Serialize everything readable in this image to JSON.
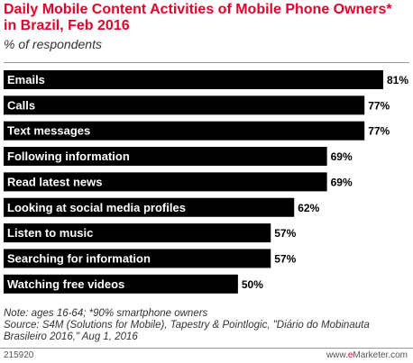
{
  "chart_data": {
    "type": "bar",
    "orientation": "horizontal",
    "title": "Daily Mobile Content Activities of Mobile Phone Owners* in Brazil, Feb 2016",
    "subtitle": "% of respondents",
    "categories": [
      "Emails",
      "Calls",
      "Text messages",
      "Following information",
      "Read latest news",
      "Looking at social media profiles",
      "Listen to music",
      "Searching for information",
      "Watching free videos"
    ],
    "values": [
      81,
      77,
      77,
      69,
      69,
      62,
      57,
      57,
      50
    ],
    "value_labels": [
      "81%",
      "77%",
      "77%",
      "69%",
      "69%",
      "62%",
      "57%",
      "57%",
      "50%"
    ],
    "xlim": [
      0,
      81
    ],
    "bar_color": "#000000",
    "grid": false
  },
  "footer": {
    "note": "Note: ages 16-64; *90% smartphone owners",
    "source": "Source: S4M (Solutions for Mobile), Tapestry & Pointlogic, \"Diário do Mobinauta Brasileiro 2016,\" Aug 1, 2016",
    "chart_id": "215920",
    "site_prefix": "www.",
    "site_brand_e": "e",
    "site_brand_rest": "Marketer",
    "site_suffix": ".com"
  },
  "colors": {
    "title": "#e4002b",
    "bars": "#000000",
    "bar_label": "#ffffff",
    "value_label": "#000000"
  }
}
